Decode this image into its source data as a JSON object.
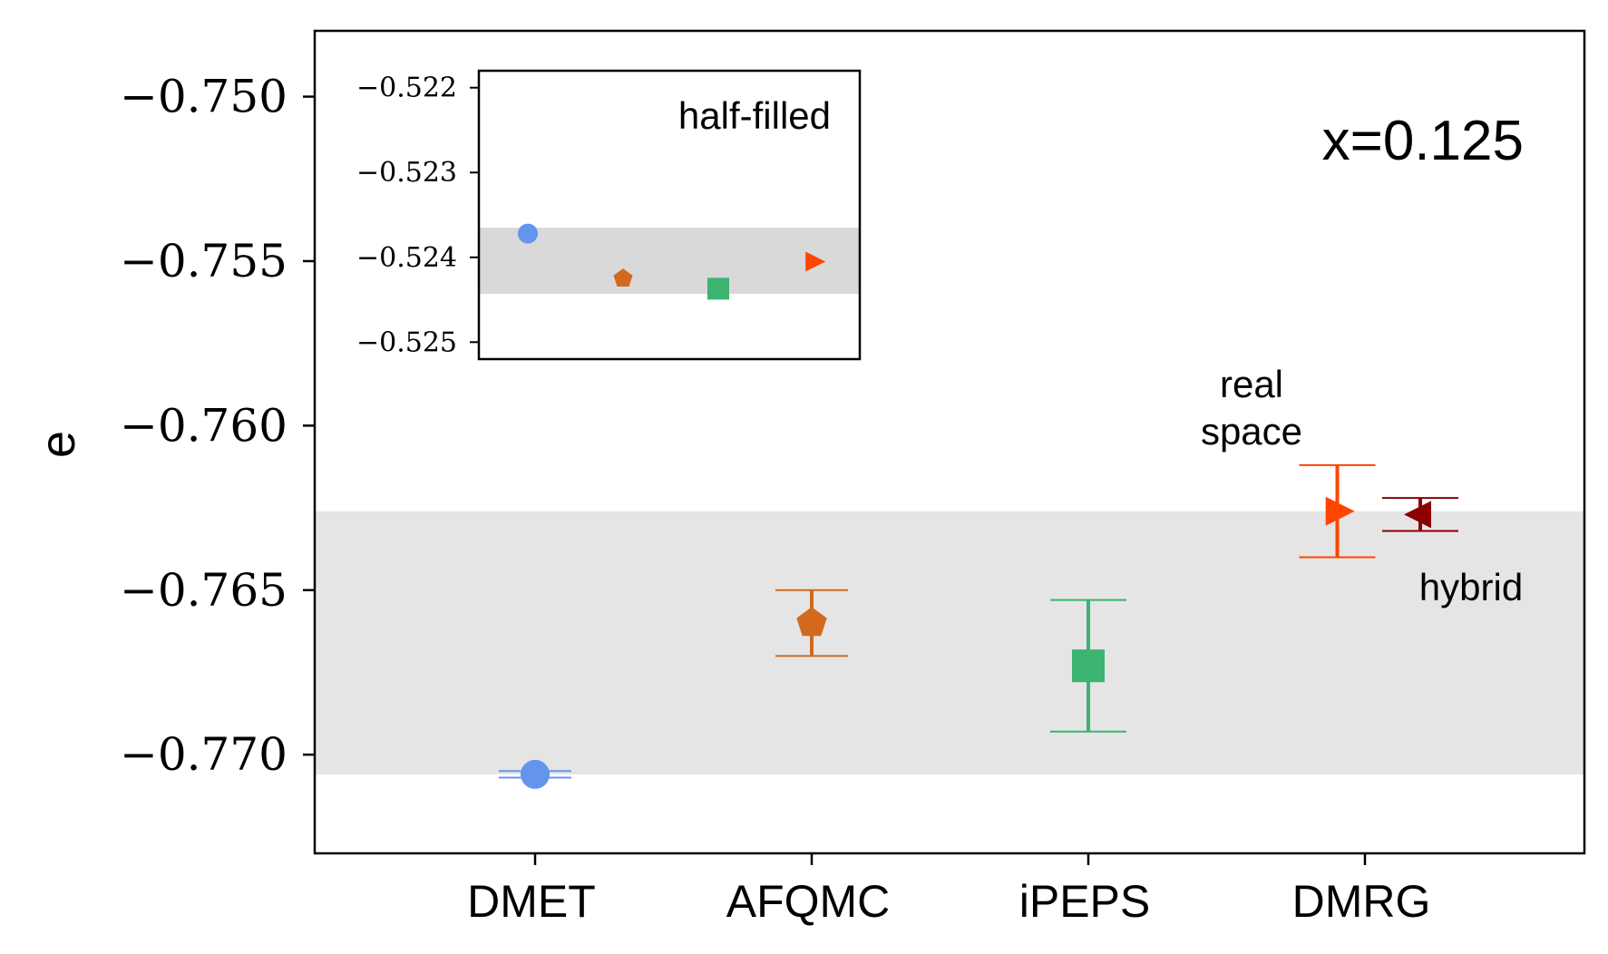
{
  "chart_data": [
    {
      "type": "scatter",
      "title": "",
      "xlabel": "",
      "ylabel": "e",
      "annotation": "x=0.125",
      "categories": [
        "DMET",
        "AFQMC",
        "iPEPS",
        "DMRG"
      ],
      "ylim": [
        -0.773,
        -0.748
      ],
      "yticks": [
        -0.75,
        -0.755,
        -0.76,
        -0.765,
        -0.77
      ],
      "ytick_labels": [
        "−0.750",
        "−0.755",
        "−0.760",
        "−0.765",
        "−0.770"
      ],
      "band": {
        "low": -0.7706,
        "high": -0.7626,
        "color": "#e5e5e5"
      },
      "points": [
        {
          "name": "DMET",
          "x": 0.0,
          "y": -0.7706,
          "err": 0.0001,
          "marker": "circle",
          "color": "#6495ed"
        },
        {
          "name": "AFQMC",
          "x": 1.0,
          "y": -0.766,
          "err": 0.001,
          "marker": "pentagon",
          "color": "#d2691e"
        },
        {
          "name": "iPEPS",
          "x": 2.0,
          "y": -0.7673,
          "err": 0.002,
          "marker": "square",
          "color": "#3cb371"
        },
        {
          "name": "DMRG real space",
          "x": 2.9,
          "y": -0.7626,
          "err": 0.0014,
          "marker": "triangle-right",
          "color": "#ff4500"
        },
        {
          "name": "DMRG hybrid",
          "x": 3.2,
          "y": -0.7627,
          "err": 0.0005,
          "marker": "triangle-left",
          "color": "#8b0000"
        }
      ],
      "labels": {
        "real_space_line1": "real",
        "real_space_line2": "space",
        "hybrid": "hybrid"
      }
    },
    {
      "type": "scatter",
      "title": "half-filled",
      "ylim": [
        -0.5252,
        -0.5218
      ],
      "yticks": [
        -0.522,
        -0.523,
        -0.524,
        -0.525
      ],
      "ytick_labels": [
        "−0.522",
        "−0.523",
        "−0.524",
        "−0.525"
      ],
      "band": {
        "low": -0.52443,
        "high": -0.52365,
        "color": "#d9d9d9"
      },
      "points": [
        {
          "name": "DMET",
          "x": 0,
          "y": -0.52372,
          "marker": "circle",
          "color": "#6495ed"
        },
        {
          "name": "AFQMC",
          "x": 1,
          "y": -0.52425,
          "marker": "pentagon",
          "color": "#d2691e"
        },
        {
          "name": "iPEPS",
          "x": 2,
          "y": -0.52437,
          "marker": "square",
          "color": "#3cb371"
        },
        {
          "name": "DMRG",
          "x": 3,
          "y": -0.52405,
          "marker": "triangle-right",
          "color": "#ff4500"
        }
      ]
    }
  ]
}
